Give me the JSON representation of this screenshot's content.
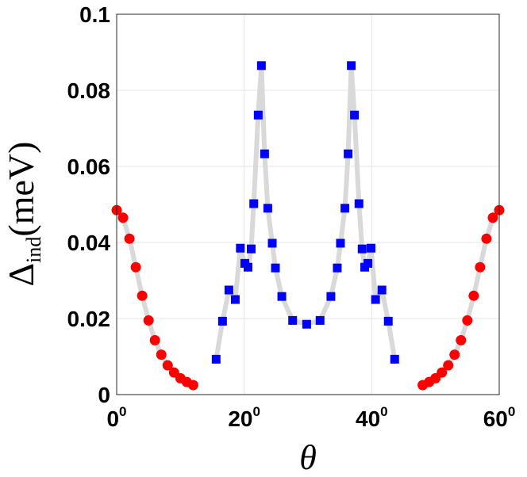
{
  "chart_data": {
    "type": "scatter",
    "xlabel": "θ",
    "ylabel_prefix": "Δ",
    "ylabel_sub": "ind",
    "ylabel_unit": "(meV)",
    "xlim": [
      0,
      60
    ],
    "ylim": [
      0,
      0.1
    ],
    "x_ticks": [
      {
        "value": 0,
        "label": "0",
        "sup": "0"
      },
      {
        "value": 20,
        "label": "20",
        "sup": "0"
      },
      {
        "value": 40,
        "label": "40",
        "sup": "0"
      },
      {
        "value": 60,
        "label": "60",
        "sup": "0"
      }
    ],
    "y_ticks": [
      {
        "value": 0,
        "label": "0"
      },
      {
        "value": 0.02,
        "label": "0.02"
      },
      {
        "value": 0.04,
        "label": "0.04"
      },
      {
        "value": 0.06,
        "label": "0.06"
      },
      {
        "value": 0.08,
        "label": "0.08"
      },
      {
        "value": 0.1,
        "label": "0.1"
      }
    ],
    "grid": true,
    "colors": {
      "circles": "#ff0000",
      "squares": "#0000ff",
      "line": "#d9d9d9"
    },
    "series": [
      {
        "marker": "circle",
        "color": "#ff0000",
        "x": [
          0.0,
          1.0,
          2.0,
          3.0,
          4.0,
          5.0,
          6.0,
          7.0,
          8.0,
          9.0,
          10.0,
          11.0,
          12.0
        ],
        "y": [
          0.0485,
          0.0465,
          0.041,
          0.0335,
          0.026,
          0.0195,
          0.0143,
          0.0105,
          0.0077,
          0.0058,
          0.0043,
          0.0033,
          0.0025
        ]
      },
      {
        "marker": "square",
        "color": "#0000ff",
        "x": [
          15.6,
          16.6,
          17.6,
          18.6,
          19.4,
          20.1,
          20.6,
          21.1,
          21.5,
          22.2,
          22.7,
          23.2,
          23.7,
          24.4,
          24.9,
          25.9,
          27.6,
          29.8,
          31.9,
          33.6,
          34.6,
          35.1,
          35.8,
          36.3,
          36.8,
          37.3,
          38.0,
          38.5,
          38.9,
          39.4,
          39.9,
          40.6,
          41.6,
          42.6,
          43.6
        ],
        "y": [
          0.0093,
          0.0193,
          0.0275,
          0.025,
          0.0385,
          0.0345,
          0.0335,
          0.0383,
          0.0502,
          0.0735,
          0.0865,
          0.0633,
          0.049,
          0.0398,
          0.0333,
          0.0258,
          0.0195,
          0.0185,
          0.0195,
          0.0258,
          0.0333,
          0.0398,
          0.049,
          0.0633,
          0.0865,
          0.0735,
          0.0502,
          0.0383,
          0.0335,
          0.0345,
          0.0385,
          0.025,
          0.0275,
          0.0193,
          0.0093
        ]
      },
      {
        "marker": "circle",
        "color": "#ff0000",
        "x": [
          48.0,
          49.0,
          50.0,
          51.0,
          52.0,
          53.0,
          54.0,
          55.0,
          56.0,
          57.0,
          58.0,
          59.0,
          60.0
        ],
        "y": [
          0.0025,
          0.0033,
          0.0043,
          0.0058,
          0.0077,
          0.0105,
          0.0143,
          0.0195,
          0.026,
          0.0335,
          0.041,
          0.0465,
          0.0485
        ]
      }
    ]
  }
}
